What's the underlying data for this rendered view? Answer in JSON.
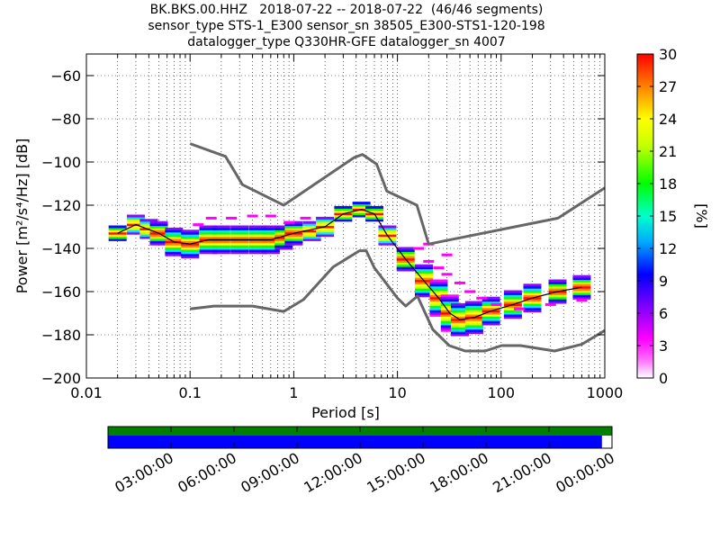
{
  "title_lines": [
    "BK.BKS.00.HHZ   2018-07-22 -- 2018-07-22  (46/46 segments)",
    "sensor_type STS-1_E300 sensor_sn 38505_E300-STS1-120-198",
    "datalogger_type Q330HR-GFE datalogger_sn 4007"
  ],
  "chart_data": {
    "type": "heatmap",
    "xlabel": "Period [s]",
    "ylabel": "Power [m²/s⁴/Hz] [dB]",
    "x_scale": "log",
    "xlim": [
      0.01,
      1000
    ],
    "ylim": [
      -200,
      -50
    ],
    "x_ticks": [
      {
        "v": 0.01,
        "label": "0.01"
      },
      {
        "v": 0.1,
        "label": "0.1"
      },
      {
        "v": 1,
        "label": "1"
      },
      {
        "v": 10,
        "label": "10"
      },
      {
        "v": 100,
        "label": "100"
      },
      {
        "v": 1000,
        "label": "1000"
      }
    ],
    "y_ticks": [
      -200,
      -180,
      -160,
      -140,
      -120,
      -100,
      -80,
      -60
    ],
    "grid": true,
    "colorbar": {
      "label": "[%]",
      "min": 0,
      "max": 30,
      "ticks": [
        0,
        3,
        6,
        9,
        12,
        15,
        18,
        21,
        24,
        27,
        30
      ]
    },
    "colormap_stops": [
      "#ffffff",
      "#ff00ff",
      "#7f00ff",
      "#0000ff",
      "#00e0ff",
      "#00ff00",
      "#c8ff00",
      "#ffff00",
      "#ff8000",
      "#ff0000"
    ],
    "noise_model_high": [
      [
        0.1,
        -91.5
      ],
      [
        0.22,
        -97.4
      ],
      [
        0.32,
        -110.5
      ],
      [
        0.8,
        -120
      ],
      [
        3.8,
        -98
      ],
      [
        4.6,
        -96.5
      ],
      [
        6.3,
        -101
      ],
      [
        7.9,
        -113.5
      ],
      [
        15.4,
        -120
      ],
      [
        20,
        -138
      ],
      [
        354,
        -126
      ],
      [
        1000,
        -112
      ]
    ],
    "noise_model_low": [
      [
        0.1,
        -168
      ],
      [
        0.17,
        -166.7
      ],
      [
        0.4,
        -166.7
      ],
      [
        0.8,
        -169.2
      ],
      [
        1.24,
        -163.7
      ],
      [
        2.4,
        -148.6
      ],
      [
        4.3,
        -141.1
      ],
      [
        5,
        -141.1
      ],
      [
        6,
        -149
      ],
      [
        10,
        -163
      ],
      [
        12,
        -166.7
      ],
      [
        15.6,
        -162.1
      ],
      [
        21.9,
        -177.5
      ],
      [
        31.6,
        -185
      ],
      [
        45,
        -187.5
      ],
      [
        70,
        -187.5
      ],
      [
        101,
        -185
      ],
      [
        154,
        -185
      ],
      [
        328,
        -187.5
      ],
      [
        600,
        -184.4
      ],
      [
        1000,
        -178
      ]
    ],
    "median_psd": [
      [
        0.02,
        -133
      ],
      [
        0.03,
        -129
      ],
      [
        0.05,
        -133
      ],
      [
        0.07,
        -137
      ],
      [
        0.1,
        -138
      ],
      [
        0.15,
        -136
      ],
      [
        0.3,
        -136
      ],
      [
        0.6,
        -136
      ],
      [
        1,
        -133
      ],
      [
        2,
        -130
      ],
      [
        3,
        -124
      ],
      [
        4.5,
        -122
      ],
      [
        6,
        -124
      ],
      [
        8,
        -134
      ],
      [
        12,
        -145
      ],
      [
        18,
        -155
      ],
      [
        25,
        -163
      ],
      [
        32,
        -170
      ],
      [
        40,
        -173
      ],
      [
        55,
        -172
      ],
      [
        80,
        -169
      ],
      [
        130,
        -166
      ],
      [
        200,
        -163
      ],
      [
        350,
        -160
      ],
      [
        600,
        -158
      ]
    ],
    "psd_band_points": [
      [
        0.02,
        -133,
        3
      ],
      [
        0.03,
        -129,
        4
      ],
      [
        0.04,
        -131,
        4
      ],
      [
        0.05,
        -133,
        5
      ],
      [
        0.07,
        -137,
        6
      ],
      [
        0.1,
        -138,
        6
      ],
      [
        0.15,
        -136,
        6
      ],
      [
        0.2,
        -136,
        6
      ],
      [
        0.3,
        -136,
        6
      ],
      [
        0.45,
        -136,
        6
      ],
      [
        0.6,
        -136,
        6
      ],
      [
        0.8,
        -135,
        5
      ],
      [
        1,
        -133,
        5
      ],
      [
        1.5,
        -132,
        4
      ],
      [
        2,
        -130,
        4
      ],
      [
        3,
        -124,
        3
      ],
      [
        4.5,
        -122,
        3
      ],
      [
        6,
        -124,
        3
      ],
      [
        8,
        -134,
        4
      ],
      [
        12,
        -145,
        5
      ],
      [
        18,
        -155,
        7
      ],
      [
        25,
        -163,
        8
      ],
      [
        32,
        -170,
        8
      ],
      [
        40,
        -173,
        7
      ],
      [
        55,
        -172,
        7
      ],
      [
        80,
        -169,
        6
      ],
      [
        130,
        -166,
        6
      ],
      [
        200,
        -163,
        6
      ],
      [
        350,
        -160,
        5
      ],
      [
        600,
        -158,
        5
      ]
    ],
    "psd_outlier_points": [
      [
        0.12,
        -129
      ],
      [
        0.16,
        -126
      ],
      [
        0.25,
        -126
      ],
      [
        0.4,
        -125
      ],
      [
        0.6,
        -125
      ],
      [
        0.9,
        -128
      ],
      [
        1.3,
        -126
      ],
      [
        16,
        -140
      ],
      [
        20,
        -146
      ],
      [
        25,
        -149
      ],
      [
        30,
        -152
      ],
      [
        40,
        -156
      ],
      [
        50,
        -160
      ],
      [
        65,
        -163
      ],
      [
        90,
        -166
      ],
      [
        150,
        -168
      ],
      [
        300,
        -166
      ],
      [
        600,
        -164
      ],
      [
        20,
        -138
      ],
      [
        30,
        -143
      ]
    ]
  },
  "timeline": {
    "tick_labels": [
      "03:00:00",
      "06:00:00",
      "09:00:00",
      "12:00:00",
      "15:00:00",
      "18:00:00",
      "21:00:00",
      "00:00:00"
    ],
    "coverage_color": "#0000ff",
    "data_bar_color": "#008000",
    "coverage_fraction": 0.98
  }
}
